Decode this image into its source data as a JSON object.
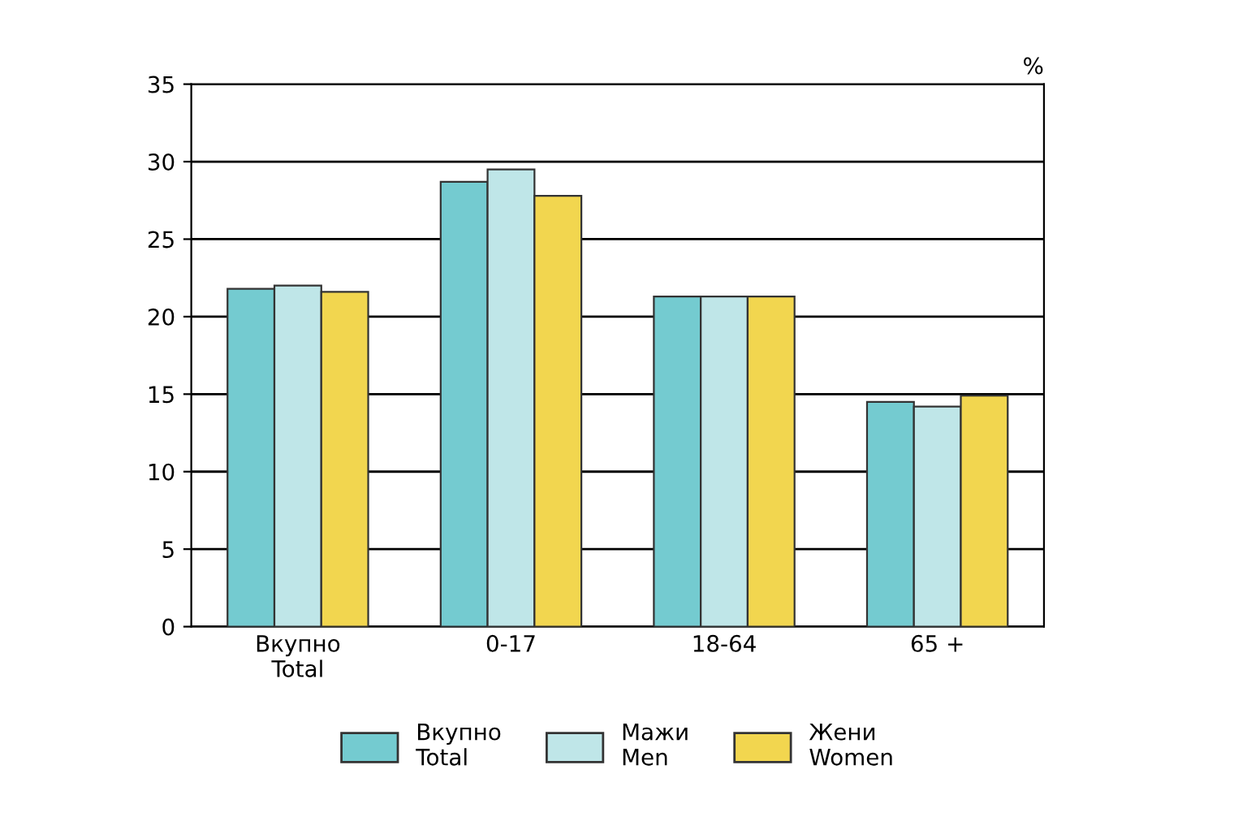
{
  "chart_data": {
    "type": "bar",
    "ylabel": "%",
    "categories": [
      "Вкупно\nTotal",
      "0-17",
      "18-64",
      "65 +"
    ],
    "series": [
      {
        "name": "Вкупно\nTotal",
        "color": "#74cbd0",
        "values": [
          21.8,
          28.7,
          21.3,
          14.5
        ]
      },
      {
        "name": "Мажи\nMen",
        "color": "#bfe6e8",
        "values": [
          22.0,
          29.5,
          21.3,
          14.2
        ]
      },
      {
        "name": "Жени\nWomen",
        "color": "#f2d64f",
        "values": [
          21.6,
          27.8,
          21.3,
          14.9
        ]
      }
    ],
    "ylim": [
      0,
      35
    ],
    "yticks": [
      0,
      5,
      10,
      15,
      20,
      25,
      30,
      35
    ],
    "grid": "y",
    "legend": "bottom"
  }
}
